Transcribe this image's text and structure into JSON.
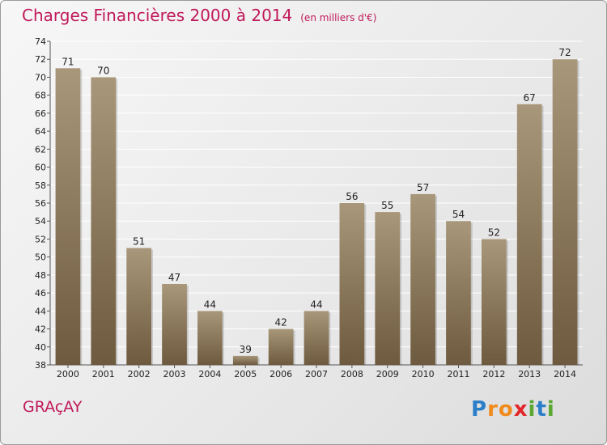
{
  "title": "Charges Financières 2000 à 2014",
  "subtitle": "(en milliers d'€)",
  "commune": "GRAçAY",
  "logo": {
    "letters": [
      "P",
      "r",
      "o",
      "x",
      "i",
      "t",
      "i"
    ],
    "colors": [
      "#2b7ec8",
      "#f08a1c",
      "#f08a1c",
      "#e2262a",
      "#5aa832",
      "#2b7ec8",
      "#5aa832"
    ]
  },
  "colors": {
    "bar_top": "#a8977a",
    "bar_bottom": "#6e5a3e",
    "title": "#c0185a"
  },
  "chart_data": {
    "type": "bar",
    "title": "Charges Financières 2000 à 2014",
    "subtitle": "(en milliers d'€)",
    "categories": [
      "2000",
      "2001",
      "2002",
      "2003",
      "2004",
      "2005",
      "2006",
      "2007",
      "2008",
      "2009",
      "2010",
      "2011",
      "2012",
      "2013",
      "2014"
    ],
    "values": [
      71,
      70,
      51,
      47,
      44,
      39,
      42,
      44,
      56,
      55,
      57,
      54,
      52,
      67,
      72
    ],
    "ylim": [
      38,
      74
    ],
    "yticks": [
      38,
      40,
      42,
      44,
      46,
      48,
      50,
      52,
      54,
      56,
      58,
      60,
      62,
      64,
      66,
      68,
      70,
      72,
      74
    ],
    "grid": true,
    "data_labels": true
  }
}
